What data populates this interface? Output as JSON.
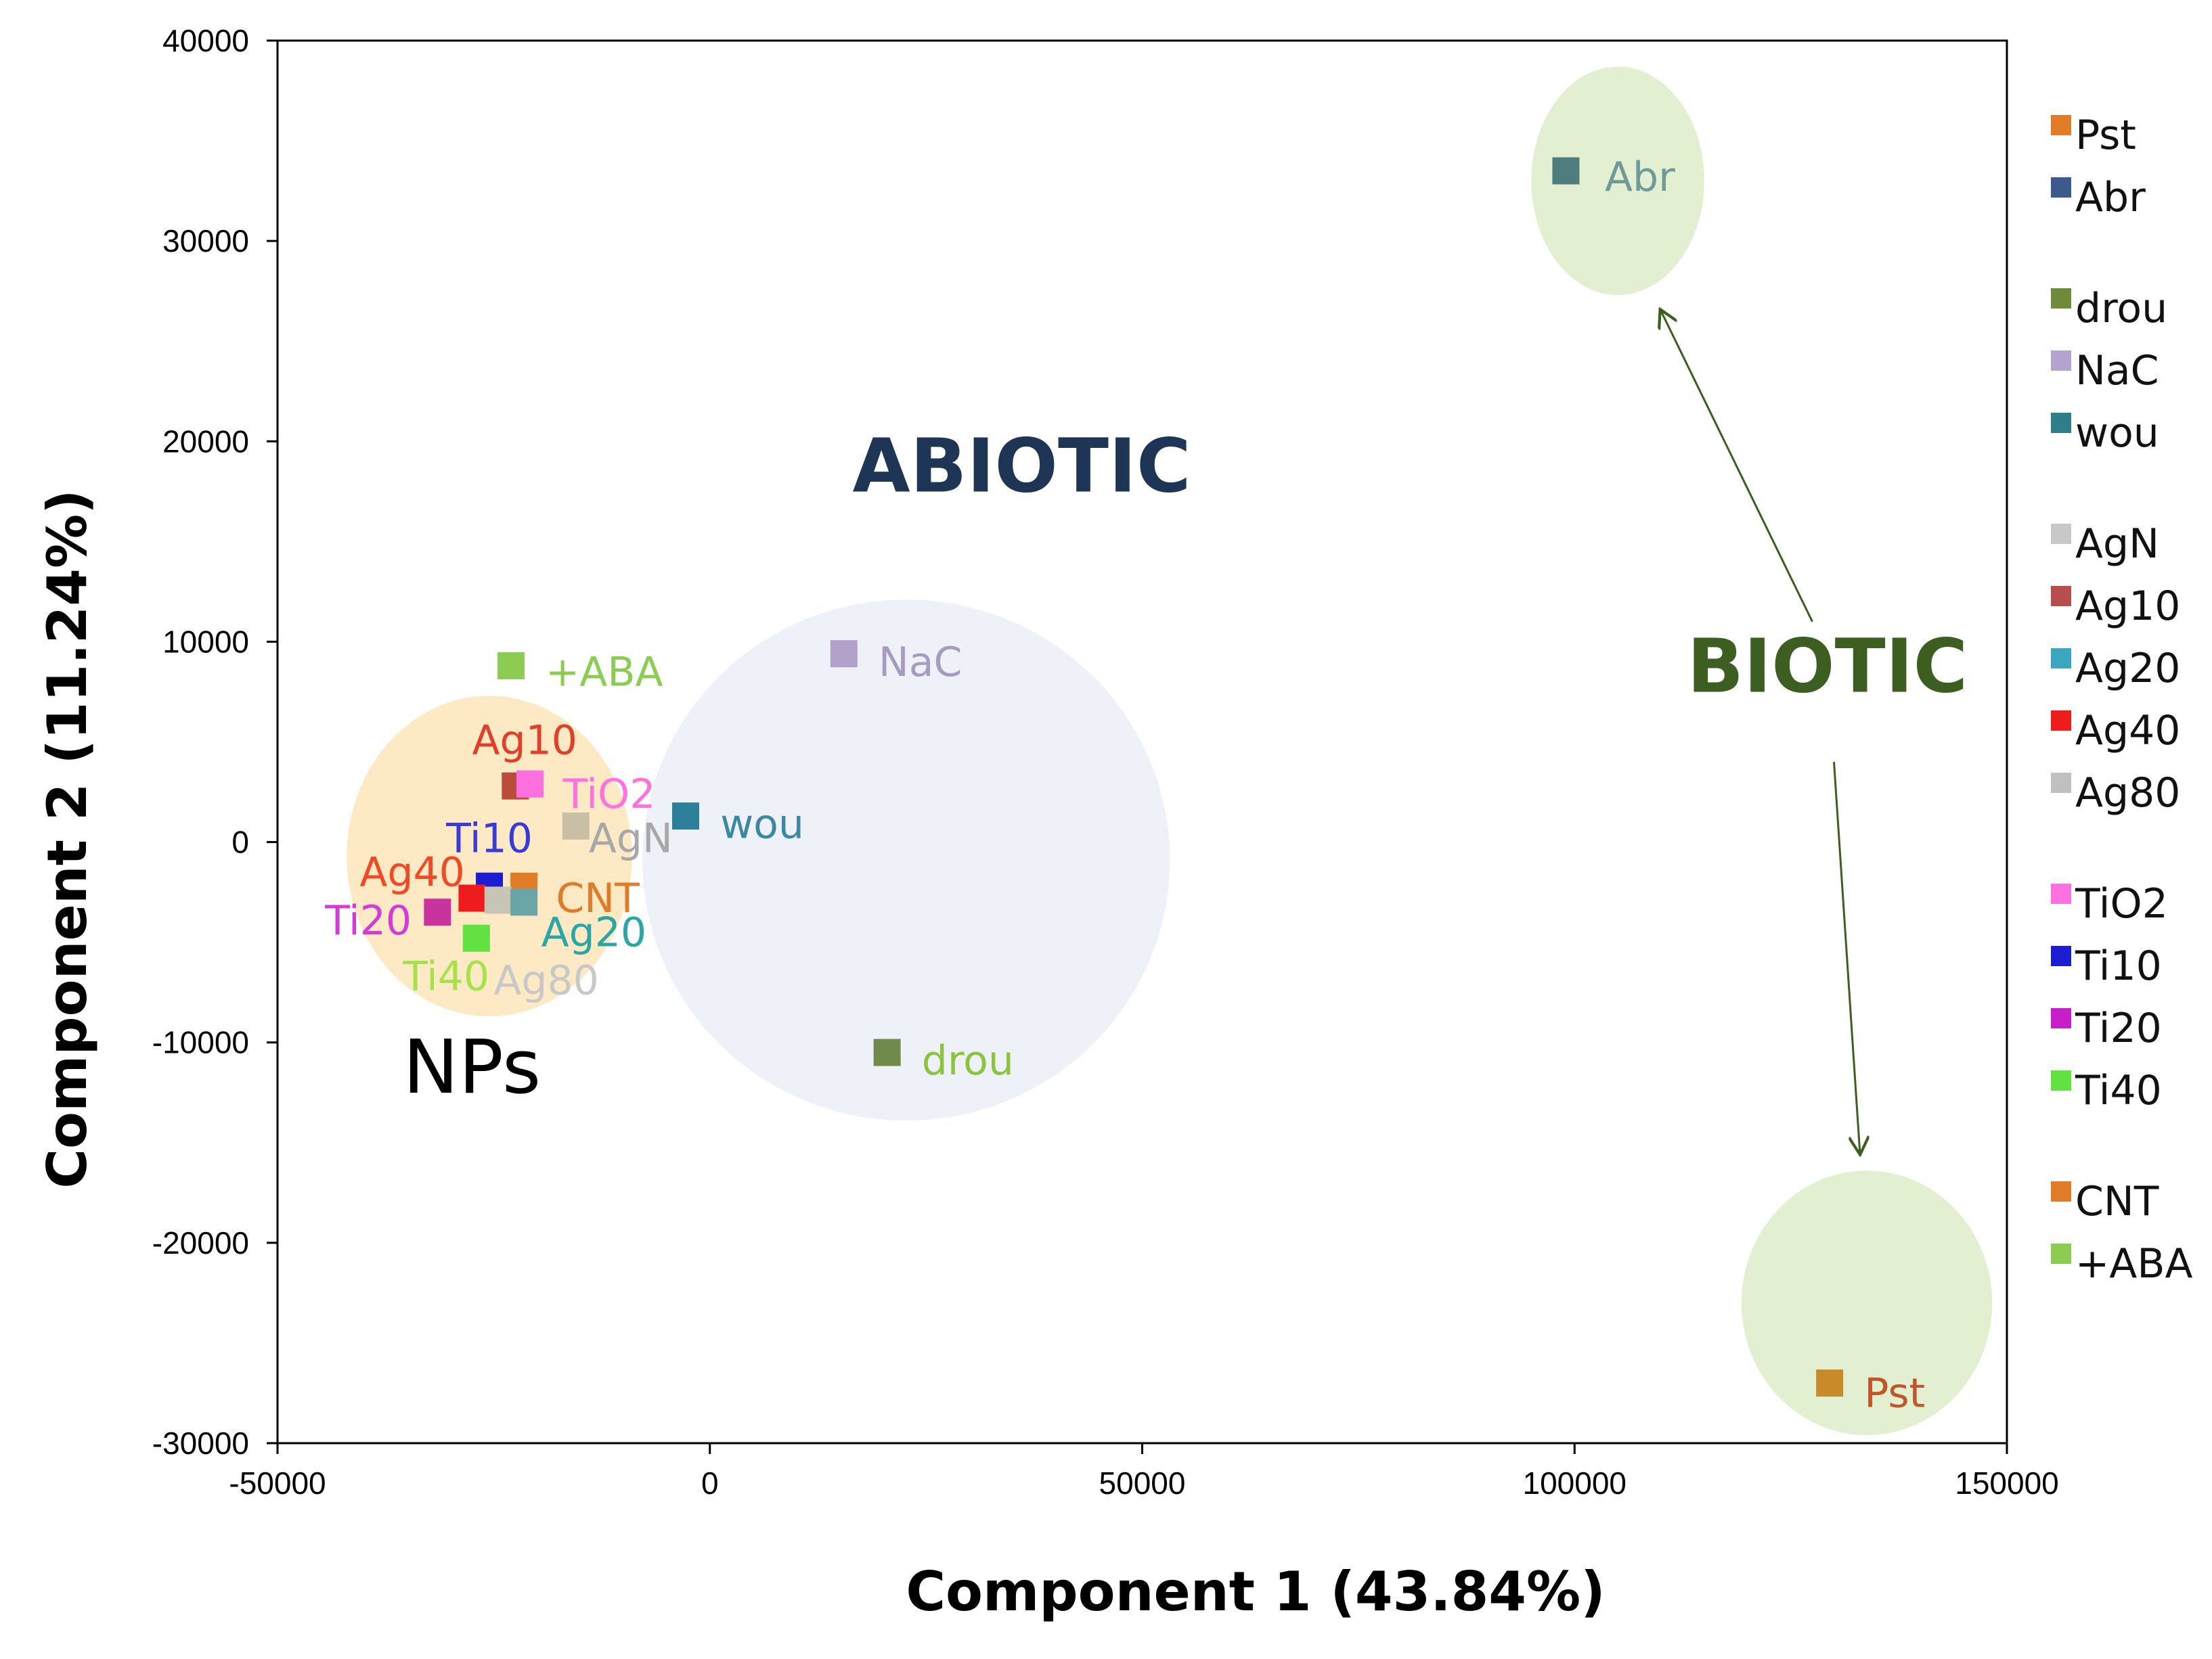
{
  "chart_data": {
    "type": "scatter",
    "xlabel": "Component 1 (43.84%)",
    "ylabel": "Component 2 (11.24%)",
    "xlim": [
      -50000,
      150000
    ],
    "ylim": [
      -30000,
      40000
    ],
    "x_ticks": [
      -50000,
      0,
      50000,
      100000,
      150000
    ],
    "y_ticks": [
      -30000,
      -20000,
      -10000,
      0,
      10000,
      20000,
      30000,
      40000
    ],
    "grid": false,
    "legend_position": "right",
    "points": [
      {
        "name": "Abr",
        "x": 99000,
        "y": 33500,
        "color": "#4e7d7d",
        "label_color": "#6f9a9a"
      },
      {
        "name": "Pst",
        "x": 129500,
        "y": -27000,
        "color": "#c98a2a",
        "label_color": "#c0562a"
      },
      {
        "name": "NaC",
        "x": 15500,
        "y": 9400,
        "color": "#b2a2c9",
        "label_color": "#a79bbf"
      },
      {
        "name": "wou",
        "x": -2800,
        "y": 1300,
        "color": "#2e7f9a",
        "label_color": "#3a87a6"
      },
      {
        "name": "drou",
        "x": 20500,
        "y": -10500,
        "color": "#6f8a4a",
        "label_color": "#8cc440"
      },
      {
        "name": "+ABA",
        "x": -23000,
        "y": 8800,
        "color": "#8ccc52",
        "label_color": "#8ccc52"
      },
      {
        "name": "Ag10",
        "x": -22500,
        "y": 2800,
        "color": "#b84d3c",
        "label_color": "#e0402a"
      },
      {
        "name": "TiO2",
        "x": -20800,
        "y": 2900,
        "color": "#ff6fe0",
        "label_color": "#ff70e0"
      },
      {
        "name": "AgN",
        "x": -15500,
        "y": 800,
        "color": "#c8bfa4",
        "label_color": "#a8a8a8"
      },
      {
        "name": "Ti10",
        "x": -25500,
        "y": -2200,
        "color": "#1c1cd0",
        "label_color": "#3a3ad8"
      },
      {
        "name": "CNT",
        "x": -21500,
        "y": -2200,
        "color": "#e07b28",
        "label_color": "#e07b28"
      },
      {
        "name": "Ag40",
        "x": -27500,
        "y": -2800,
        "color": "#ee1c1c",
        "label_color": "#f04a24"
      },
      {
        "name": "Ag80",
        "x": -24500,
        "y": -2900,
        "color": "#c9c5b6",
        "label_color": "#c8c8c8"
      },
      {
        "name": "Ag20",
        "x": -21500,
        "y": -3000,
        "color": "#6aa6a6",
        "label_color": "#2aa6a6"
      },
      {
        "name": "Ti20",
        "x": -31500,
        "y": -3500,
        "color": "#c8339e",
        "label_color": "#d43ad4"
      },
      {
        "name": "Ti40",
        "x": -27000,
        "y": -4800,
        "color": "#62e242",
        "label_color": "#a6e24a"
      }
    ],
    "point_labels": [
      {
        "name": "Abr",
        "x": 103500,
        "y": 32500
      },
      {
        "name": "Pst",
        "x": 133500,
        "y": -28200
      },
      {
        "name": "NaC",
        "x": 19500,
        "y": 8300
      },
      {
        "name": "wou",
        "x": 1200,
        "y": 200
      },
      {
        "name": "drou",
        "x": 24500,
        "y": -11600
      },
      {
        "name": "+ABA",
        "x": -19000,
        "y": 7800
      },
      {
        "name": "Ag10",
        "x": -27500,
        "y": 4400
      },
      {
        "name": "TiO2",
        "x": -17000,
        "y": 1700
      },
      {
        "name": "AgN",
        "x": -14000,
        "y": -500
      },
      {
        "name": "Ti10",
        "x": -30500,
        "y": -500
      },
      {
        "name": "CNT",
        "x": -17800,
        "y": -3500
      },
      {
        "name": "Ag40",
        "x": -40500,
        "y": -2200
      },
      {
        "name": "Ag80",
        "x": -25000,
        "y": -7600
      },
      {
        "name": "Ag20",
        "x": -19500,
        "y": -5200
      },
      {
        "name": "Ti20",
        "x": -44500,
        "y": -4600
      },
      {
        "name": "Ti40",
        "x": -35500,
        "y": -7400
      }
    ],
    "legend": [
      {
        "name": "Pst",
        "color": "#e07b28",
        "group": 0
      },
      {
        "name": "Abr",
        "color": "#3d5a8c",
        "group": 0
      },
      {
        "name": "drou",
        "color": "#6f8a3a",
        "group": 1
      },
      {
        "name": "NaC",
        "color": "#b3a3cf",
        "group": 1
      },
      {
        "name": "wou",
        "color": "#2e7f8a",
        "group": 1
      },
      {
        "name": "AgN",
        "color": "#c8c8c8",
        "group": 2
      },
      {
        "name": "Ag10",
        "color": "#b84d4d",
        "group": 2
      },
      {
        "name": "Ag20",
        "color": "#3aa6c0",
        "group": 2
      },
      {
        "name": "Ag40",
        "color": "#ee1c1c",
        "group": 2
      },
      {
        "name": "Ag80",
        "color": "#c0c0c0",
        "group": 2
      },
      {
        "name": "TiO2",
        "color": "#ff70e0",
        "group": 3
      },
      {
        "name": "Ti10",
        "color": "#1c1cd0",
        "group": 3
      },
      {
        "name": "Ti20",
        "color": "#c81ec8",
        "group": 3
      },
      {
        "name": "Ti40",
        "color": "#62e242",
        "group": 3
      },
      {
        "name": "CNT",
        "color": "#e07b28",
        "group": 4
      },
      {
        "name": "+ABA",
        "color": "#8ccc52",
        "group": 4
      }
    ],
    "regions": [
      {
        "label": "",
        "cx": 105000,
        "cy": 33000,
        "rx": 10000,
        "ry": 5700,
        "color": "#e2efd0"
      },
      {
        "label": "",
        "cx": 133800,
        "cy": -23000,
        "rx": 14500,
        "ry": 6600,
        "color": "#e2efd0"
      },
      {
        "label": "",
        "cx": 22700,
        "cy": -900,
        "rx": 30500,
        "ry": 13000,
        "color": "#eef1f8"
      },
      {
        "label": "",
        "cx": -25500,
        "cy": -700,
        "rx": 16500,
        "ry": 8000,
        "color": "#fde9c4"
      }
    ],
    "annotations": [
      {
        "text": "ABIOTIC",
        "x": 16500,
        "y": 17500,
        "color": "#1f3556",
        "style": "group"
      },
      {
        "text": "BIOTIC",
        "x": 113000,
        "y": 7500,
        "color": "#3c5e20",
        "style": "group"
      },
      {
        "text": "NPs",
        "x": -35500,
        "y": -12500,
        "color": "#000000",
        "style": "plain"
      }
    ],
    "arrows": [
      {
        "from": [
          127500,
          11000
        ],
        "to": [
          110000,
          26500
        ],
        "color": "#3c5e20"
      },
      {
        "from": [
          130000,
          4000
        ],
        "to": [
          133000,
          -15500
        ],
        "color": "#3c5e20"
      }
    ]
  }
}
